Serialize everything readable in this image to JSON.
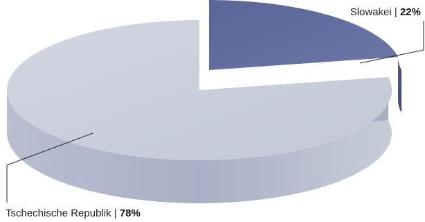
{
  "chart_data": {
    "type": "pie",
    "style": "3d",
    "slices": [
      {
        "label": "Slowakei",
        "value": 22,
        "value_text": "22%",
        "color": "#5f6a9d",
        "exploded": true
      },
      {
        "label": "Tschechische Republik",
        "value": 78,
        "value_text": "78%",
        "color": "#c5cad8",
        "exploded": false
      }
    ],
    "separator": "|",
    "legend": "none"
  }
}
